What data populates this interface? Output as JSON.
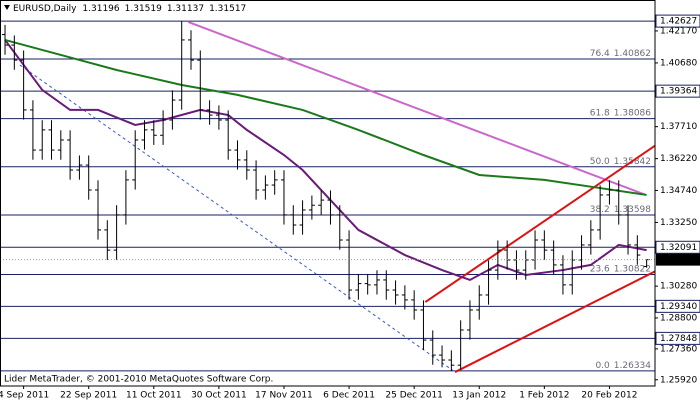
{
  "chart_data": {
    "type": "ohlc",
    "symbol": "EURUSD,Daily",
    "footer_text": "Lider MetaTrader, © 2001-2010 MetaQuotes Software Corp.",
    "xlim": [
      -0.54,
      69.9
    ],
    "ylim": [
      1.2563,
      1.4361
    ],
    "xticks": [
      {
        "value": 2,
        "label": "4 Sep 2011"
      },
      {
        "value": 9,
        "label": "22 Sep 2011"
      },
      {
        "value": 16,
        "label": "11 Oct 2011"
      },
      {
        "value": 23,
        "label": "30 Oct 2011"
      },
      {
        "value": 30,
        "label": "17 Nov 2011"
      },
      {
        "value": 37,
        "label": "6 Dec 2011"
      },
      {
        "value": 44,
        "label": "25 Dec 2011"
      },
      {
        "value": 51,
        "label": "13 Jan 2012"
      },
      {
        "value": 58,
        "label": "1 Feb 2012"
      },
      {
        "value": 65,
        "label": "20 Feb 2012"
      }
    ],
    "yticks": [
      {
        "value": 1.4217,
        "label": "1.42170"
      },
      {
        "value": 1.4068,
        "label": "1.40680"
      },
      {
        "value": 1.3771,
        "label": "1.37710"
      },
      {
        "value": 1.3622,
        "label": "1.36220"
      },
      {
        "value": 1.3474,
        "label": "1.34740"
      },
      {
        "value": 1.3325,
        "label": "1.33250"
      },
      {
        "value": 1.3028,
        "label": "1.30280"
      },
      {
        "value": 1.288,
        "label": "1.28800"
      },
      {
        "value": 1.2736,
        "label": "1.27360"
      },
      {
        "value": 1.2592,
        "label": "1.25920"
      }
    ],
    "bar_color": "#000000",
    "open": [
      1.42,
      1.4151,
      1.4081,
      1.3849,
      1.3662,
      1.3756,
      1.3662,
      1.3709,
      1.3569,
      1.3592,
      1.3476,
      1.329,
      1.3196,
      1.336,
      1.3523,
      1.3709,
      1.3756,
      1.3731,
      1.3802,
      1.3895,
      1.4175,
      1.4081,
      1.3849,
      1.3825,
      1.3802,
      1.3662,
      1.3616,
      1.3569,
      1.3476,
      1.3499,
      1.3523,
      1.336,
      1.3313,
      1.3383,
      1.3405,
      1.3429,
      1.336,
      1.3243,
      1.301,
      1.304,
      1.3034,
      1.3057,
      1.301,
      1.2987,
      1.2964,
      1.2917,
      1.2777,
      1.2707,
      1.2684,
      1.266,
      1.2824,
      1.2917,
      1.2987,
      1.3103,
      1.3196,
      1.315,
      1.3103,
      1.315,
      1.3243,
      1.3196,
      1.3127,
      1.3034,
      1.315,
      1.322,
      1.329,
      1.3453,
      1.3476,
      1.336,
      1.322,
      1.31196
    ],
    "high": [
      1.4245,
      1.4196,
      1.4126,
      1.3894,
      1.3801,
      1.3801,
      1.3754,
      1.3754,
      1.3637,
      1.3637,
      1.3521,
      1.3335,
      1.3405,
      1.3568,
      1.3754,
      1.3801,
      1.3801,
      1.3847,
      1.394,
      1.4262,
      1.422,
      1.4126,
      1.3894,
      1.387,
      1.3847,
      1.3707,
      1.3661,
      1.3614,
      1.3544,
      1.3568,
      1.3568,
      1.3405,
      1.3428,
      1.345,
      1.3474,
      1.3474,
      1.3405,
      1.3288,
      1.3085,
      1.3085,
      1.3102,
      1.3102,
      1.3055,
      1.3032,
      1.3009,
      1.2962,
      1.2822,
      1.2752,
      1.2729,
      1.2869,
      1.2962,
      1.3032,
      1.3148,
      1.3241,
      1.3241,
      1.3195,
      1.3195,
      1.3288,
      1.3288,
      1.3241,
      1.3172,
      1.3195,
      1.3265,
      1.3335,
      1.3498,
      1.3521,
      1.3521,
      1.3405,
      1.3265,
      1.31519
    ],
    "low": [
      1.4106,
      1.4036,
      1.3804,
      1.3617,
      1.3617,
      1.3617,
      1.3617,
      1.3524,
      1.3524,
      1.3431,
      1.3245,
      1.315,
      1.3151,
      1.3315,
      1.3478,
      1.3664,
      1.3686,
      1.3686,
      1.3757,
      1.385,
      1.4036,
      1.3804,
      1.378,
      1.3757,
      1.3617,
      1.3571,
      1.3524,
      1.3431,
      1.3431,
      1.3454,
      1.3315,
      1.3268,
      1.3268,
      1.3338,
      1.336,
      1.3315,
      1.3198,
      1.2965,
      1.2965,
      1.2989,
      1.2989,
      1.2965,
      1.2942,
      1.2919,
      1.2872,
      1.2732,
      1.2662,
      1.265,
      1.2633,
      1.264,
      1.2779,
      1.2872,
      1.2942,
      1.3058,
      1.3105,
      1.3058,
      1.3058,
      1.3105,
      1.3151,
      1.3082,
      1.2989,
      1.2989,
      1.3105,
      1.3175,
      1.3245,
      1.3408,
      1.3315,
      1.3175,
      1.3128,
      1.31137
    ],
    "close": [
      1.4151,
      1.4081,
      1.3849,
      1.3662,
      1.3756,
      1.3662,
      1.3709,
      1.3569,
      1.3592,
      1.3476,
      1.329,
      1.3196,
      1.336,
      1.3523,
      1.3709,
      1.3756,
      1.3731,
      1.3802,
      1.3895,
      1.4175,
      1.4081,
      1.3849,
      1.3825,
      1.3802,
      1.3662,
      1.3616,
      1.3569,
      1.3476,
      1.3499,
      1.3523,
      1.336,
      1.3313,
      1.3383,
      1.3405,
      1.3429,
      1.336,
      1.3243,
      1.301,
      1.304,
      1.3034,
      1.3057,
      1.301,
      1.2987,
      1.2964,
      1.2917,
      1.2777,
      1.2707,
      1.2684,
      1.266,
      1.2824,
      1.2917,
      1.2987,
      1.3103,
      1.3196,
      1.315,
      1.3103,
      1.315,
      1.3243,
      1.3196,
      1.3127,
      1.3034,
      1.315,
      1.322,
      1.329,
      1.3453,
      1.3476,
      1.336,
      1.322,
      1.3173,
      1.31517
    ],
    "moving_averages": [
      {
        "color": "#6a1a7a",
        "x": [
          0,
          4,
          7,
          10,
          14,
          17,
          21,
          24,
          26,
          30,
          32,
          35,
          38,
          43,
          47,
          50,
          53,
          56,
          60,
          63,
          66,
          69
        ],
        "values": [
          1.4175,
          1.3942,
          1.3849,
          1.3849,
          1.3779,
          1.3802,
          1.3849,
          1.3825,
          1.3756,
          1.3639,
          1.3569,
          1.3429,
          1.329,
          1.3173,
          1.3103,
          1.3057,
          1.3127,
          1.308,
          1.3103,
          1.3127,
          1.322,
          1.3196
        ]
      },
      {
        "color": "#1a7a1a",
        "x": [
          0,
          6,
          12,
          19,
          25,
          32,
          38,
          45,
          51,
          58,
          64,
          69
        ],
        "values": [
          1.4175,
          1.4105,
          1.4035,
          1.3965,
          1.3919,
          1.3849,
          1.3756,
          1.3639,
          1.3546,
          1.3523,
          1.3485,
          1.3453
        ]
      }
    ],
    "trendlines": [
      {
        "color": "#cc66cc",
        "dashed": false,
        "x": [
          19.7,
          68.8
        ],
        "y": [
          1.4259,
          1.3455
        ]
      },
      {
        "color": "#e01010",
        "dashed": false,
        "x": [
          45.2,
          74.2
        ],
        "y": [
          1.2954,
          1.3809
        ]
      },
      {
        "color": "#e01010",
        "dashed": false,
        "x": [
          48.4,
          75.5
        ],
        "y": [
          1.2628,
          1.3219
        ]
      },
      {
        "color": "#3a5ad0",
        "dashed": true,
        "x": [
          1.6,
          48.4
        ],
        "y": [
          1.4058,
          1.2628
        ]
      }
    ],
    "line_color": "#1a2060",
    "levels": [
      1.42627,
      1.39364,
      1.32091,
      {
        "value": 1.2934,
        "label": "1.29340"
      },
      1.27848
    ],
    "fibonacci": [
      {
        "level": "76.4",
        "price": 1.40862
      },
      {
        "level": "61.8",
        "price": 1.38086
      },
      {
        "level": "50.0",
        "price": 1.35842
      },
      {
        "level": "38.2",
        "price": 1.33598
      },
      {
        "level": "23.6",
        "price": 1.30822
      },
      {
        "level": "0.0",
        "price": 1.26334
      }
    ]
  }
}
